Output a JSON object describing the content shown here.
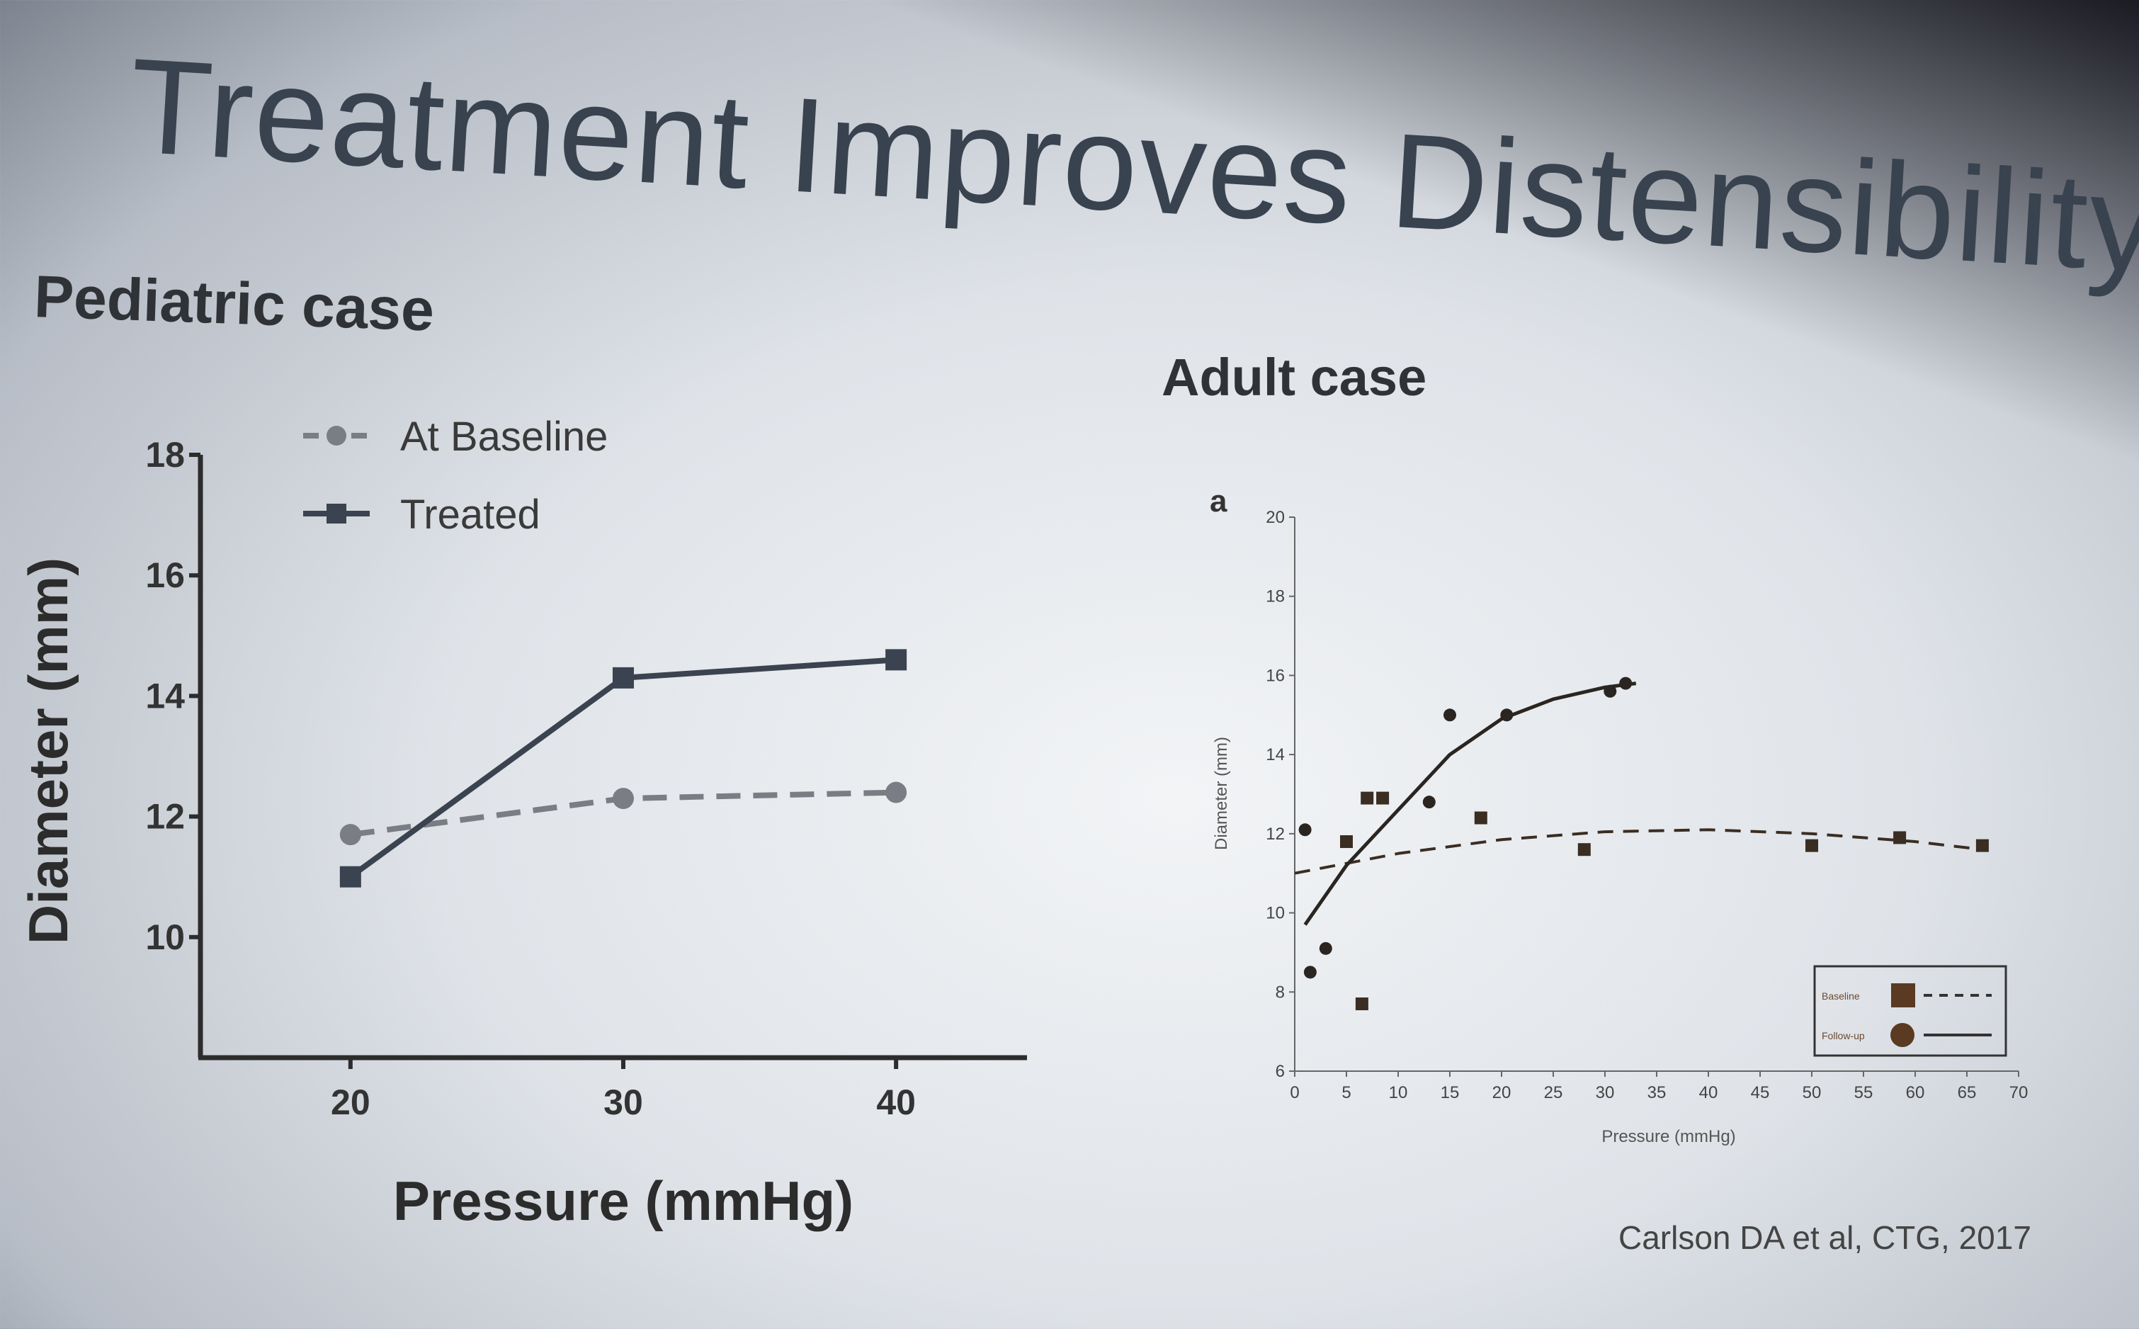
{
  "slide": {
    "title": "Treatment Improves Distensibility",
    "left_panel_title": "Pediatric case",
    "right_panel_title": "Adult case",
    "citation": "Carlson DA et al, CTG, 2017"
  },
  "chart_data": [
    {
      "type": "line",
      "xlabel": "Pressure (mmHg)",
      "ylabel": "Diameter (mm)",
      "x": [
        20,
        30,
        40
      ],
      "x_ticks": [
        "20",
        "30",
        "40"
      ],
      "y_ticks": [
        "10",
        "12",
        "14",
        "16",
        "18"
      ],
      "xlim": [
        14.5,
        44.8
      ],
      "ylim": [
        8,
        18
      ],
      "series": [
        {
          "name": "At Baseline",
          "values": [
            11.7,
            12.3,
            12.4
          ],
          "marker": "circle",
          "line": "dashed",
          "color": "#7a7e84"
        },
        {
          "name": "Treated",
          "values": [
            11.0,
            14.3,
            14.6
          ],
          "marker": "square",
          "line": "solid",
          "color": "#3b4350"
        }
      ],
      "legend": "top-left",
      "grid": false
    },
    {
      "type": "scatter",
      "panel_label": "a",
      "xlabel": "Pressure (mmHg)",
      "ylabel": "Diameter (mm)",
      "x_ticks": [
        "0",
        "5",
        "10",
        "15",
        "20",
        "25",
        "30",
        "35",
        "40",
        "45",
        "50",
        "55",
        "60",
        "65",
        "70"
      ],
      "y_ticks": [
        "6",
        "8",
        "10",
        "12",
        "14",
        "16",
        "18",
        "20"
      ],
      "xlim": [
        0,
        70
      ],
      "ylim": [
        6,
        20
      ],
      "series": [
        {
          "name": "Baseline",
          "marker": "square",
          "line": "dashed",
          "color": "#3a2d22",
          "points": [
            [
              5,
              11.8
            ],
            [
              6.5,
              7.7
            ],
            [
              7,
              12.9
            ],
            [
              8.5,
              12.9
            ],
            [
              18,
              12.4
            ],
            [
              28,
              11.6
            ],
            [
              50,
              11.7
            ],
            [
              58.5,
              11.9
            ],
            [
              66.5,
              11.7
            ]
          ],
          "fit": [
            [
              0,
              11.0
            ],
            [
              10,
              11.5
            ],
            [
              20,
              11.85
            ],
            [
              30,
              12.05
            ],
            [
              40,
              12.1
            ],
            [
              50,
              12.0
            ],
            [
              60,
              11.8
            ],
            [
              66.5,
              11.6
            ]
          ]
        },
        {
          "name": "Follow-up",
          "marker": "circle",
          "line": "solid",
          "color": "#2a2520",
          "points": [
            [
              1,
              12.1
            ],
            [
              1.5,
              8.5
            ],
            [
              3,
              9.1
            ],
            [
              13,
              12.8
            ],
            [
              15,
              15.0
            ],
            [
              20.5,
              15.0
            ],
            [
              30.5,
              15.6
            ],
            [
              32,
              15.8
            ]
          ],
          "fit": [
            [
              1,
              9.7
            ],
            [
              5,
              11.2
            ],
            [
              10,
              12.6
            ],
            [
              15,
              14.0
            ],
            [
              20,
              14.9
            ],
            [
              25,
              15.4
            ],
            [
              30,
              15.7
            ],
            [
              33,
              15.8
            ]
          ]
        }
      ],
      "legend": "bottom-right",
      "grid": false
    }
  ]
}
